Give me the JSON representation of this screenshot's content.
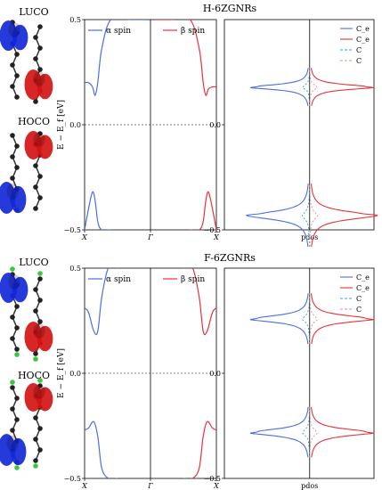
{
  "colors": {
    "alpha": "#4a6fe3",
    "beta": "#e8333a",
    "alpha_light": "#1fa8e0",
    "beta_light": "#f08a8a",
    "atom": "#222222",
    "orbital_blue": "#1428d8",
    "orbital_red": "#d21414",
    "fluorine": "#3cc83c"
  },
  "panels": [
    {
      "id": "top",
      "title": "H-6ZGNRs",
      "mol_labels": [
        "LUCO",
        "HOCO"
      ],
      "fluorinated": false
    },
    {
      "id": "bottom",
      "title": "F-6ZGNRs",
      "mol_labels": [
        "LUCO",
        "HOCO"
      ],
      "fluorinated": true
    }
  ],
  "chart_data": [
    {
      "type": "line",
      "chart": "band structure",
      "panel": "top",
      "ylabel": "E − E_f [eV]",
      "ylim": [
        -0.5,
        0.5
      ],
      "yticks": [
        "0.5",
        "0.0",
        "−0.5"
      ],
      "xticks": [
        "X",
        "Γ",
        "X"
      ],
      "legend": [
        {
          "name": "α spin",
          "position": "top-left"
        },
        {
          "name": "β spin",
          "position": "top-right"
        }
      ],
      "fermi_line": 0.0,
      "series": [
        {
          "name": "α spin",
          "x": [
            0.0,
            0.03,
            0.06,
            0.08,
            0.1,
            0.13,
            0.2,
            0.35,
            0.47
          ],
          "y": [
            0.2,
            0.2,
            0.18,
            0.14,
            0.2,
            0.36,
            0.5,
            0.5,
            0.5
          ],
          "branch": "conduction"
        },
        {
          "name": "α spin",
          "x": [
            0.0,
            0.03,
            0.06,
            0.08,
            0.1,
            0.13,
            0.2
          ],
          "y": [
            -0.5,
            -0.4,
            -0.32,
            -0.36,
            -0.46,
            -0.5,
            -0.5
          ],
          "branch": "valence"
        },
        {
          "name": "β spin",
          "x": [
            1.0,
            0.97,
            0.94,
            0.92,
            0.9,
            0.87,
            0.8,
            0.65,
            0.53
          ],
          "y": [
            0.18,
            0.18,
            0.17,
            0.14,
            0.2,
            0.36,
            0.5,
            0.5,
            0.5
          ],
          "branch": "conduction"
        },
        {
          "name": "β spin",
          "x": [
            1.0,
            0.97,
            0.94,
            0.92,
            0.9,
            0.87,
            0.8
          ],
          "y": [
            -0.5,
            -0.4,
            -0.32,
            -0.36,
            -0.46,
            -0.5,
            -0.5
          ],
          "branch": "valence"
        }
      ]
    },
    {
      "type": "line",
      "chart": "projected density of states",
      "panel": "top",
      "xlabel": "pdos",
      "ylim": [
        -0.5,
        0.5
      ],
      "yticks": [
        "0.0",
        "−0.5"
      ],
      "legend": [
        "C_e",
        "C_e",
        "C",
        "C"
      ],
      "legend_position": "top-right",
      "peaks": [
        {
          "name": "C_e α",
          "energy": 0.18,
          "width": 0.03,
          "side": "left"
        },
        {
          "name": "C_e β",
          "energy": 0.18,
          "width": 0.03,
          "side": "right"
        },
        {
          "name": "C_e α",
          "energy": -0.43,
          "width": 0.05,
          "side": "left"
        },
        {
          "name": "C_e β",
          "energy": -0.43,
          "width": 0.05,
          "side": "right"
        }
      ]
    },
    {
      "type": "line",
      "chart": "band structure",
      "panel": "bottom",
      "ylabel": "E − E_f [eV]",
      "ylim": [
        -0.5,
        0.5
      ],
      "yticks": [
        "0.5",
        "0.0",
        "−0.5"
      ],
      "xticks": [
        "X",
        "Γ",
        "X"
      ],
      "legend": [
        {
          "name": "α spin",
          "position": "top-left"
        },
        {
          "name": "β spin",
          "position": "top-right"
        }
      ],
      "fermi_line": 0.0,
      "series": [
        {
          "name": "α spin",
          "x": [
            0.0,
            0.03,
            0.07,
            0.1,
            0.13,
            0.18,
            0.25
          ],
          "y": [
            0.31,
            0.29,
            0.2,
            0.2,
            0.36,
            0.5,
            0.5
          ],
          "branch": "conduction"
        },
        {
          "name": "α spin",
          "x": [
            0.0,
            0.03,
            0.07,
            0.1,
            0.13,
            0.18,
            0.25
          ],
          "y": [
            -0.27,
            -0.26,
            -0.23,
            -0.3,
            -0.45,
            -0.5,
            -0.5
          ],
          "branch": "valence"
        },
        {
          "name": "β spin",
          "x": [
            1.0,
            0.97,
            0.93,
            0.9,
            0.87,
            0.82,
            0.75
          ],
          "y": [
            0.31,
            0.29,
            0.2,
            0.2,
            0.36,
            0.5,
            0.5
          ],
          "branch": "conduction"
        },
        {
          "name": "β spin",
          "x": [
            1.0,
            0.97,
            0.93,
            0.9,
            0.87,
            0.82,
            0.75
          ],
          "y": [
            -0.27,
            -0.26,
            -0.23,
            -0.3,
            -0.45,
            -0.5,
            -0.5
          ],
          "branch": "valence"
        }
      ]
    },
    {
      "type": "line",
      "chart": "projected density of states",
      "panel": "bottom",
      "xlabel": "pdos",
      "ylim": [
        -0.5,
        0.5
      ],
      "yticks": [
        "0.0",
        "−0.5"
      ],
      "legend": [
        "C_e",
        "C_e",
        "C",
        "C"
      ],
      "legend_position": "top-right",
      "peaks": [
        {
          "name": "C_e α",
          "energy": 0.26,
          "width": 0.04,
          "side": "left"
        },
        {
          "name": "C_e β",
          "energy": 0.26,
          "width": 0.04,
          "side": "right"
        },
        {
          "name": "C_e α",
          "energy": -0.28,
          "width": 0.04,
          "side": "left"
        },
        {
          "name": "C_e β",
          "energy": -0.28,
          "width": 0.04,
          "side": "right"
        }
      ]
    }
  ]
}
